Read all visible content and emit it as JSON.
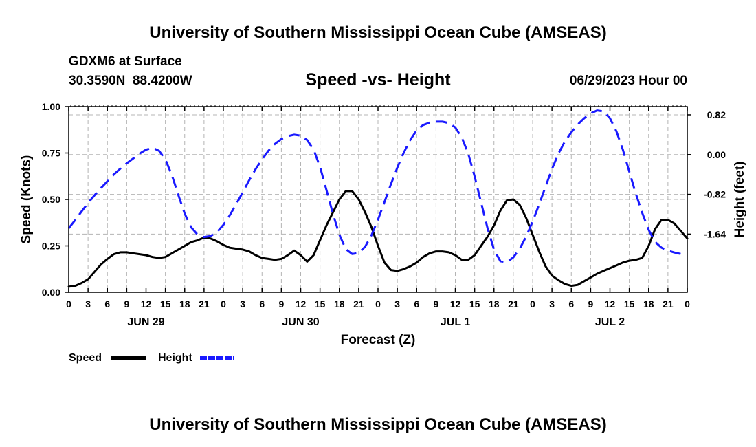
{
  "header": {
    "title": "University of Southern Mississippi Ocean Cube (AMSEAS)",
    "station": "GDXM6 at Surface",
    "coordinates": "30.3590N  88.4200W",
    "run_time": "06/29/2023 Hour 00"
  },
  "footer": {
    "title": "University of Southern Mississippi Ocean Cube (AMSEAS)"
  },
  "chart_data": {
    "type": "line",
    "title": "Speed -vs- Height",
    "xlabel": "Forecast (Z)",
    "ylabel_left": "Speed (Knots)",
    "ylabel_right": "Height (feet)",
    "x_range_hours": [
      0,
      96
    ],
    "x_tick_labels": [
      "0",
      "3",
      "6",
      "9",
      "12",
      "15",
      "18",
      "21",
      "0",
      "3",
      "6",
      "9",
      "12",
      "15",
      "18",
      "21",
      "0",
      "3",
      "6",
      "9",
      "12",
      "15",
      "18",
      "21",
      "0",
      "3",
      "6",
      "9",
      "12",
      "15",
      "18",
      "21",
      "0"
    ],
    "date_labels": [
      {
        "label": "JUN 29",
        "hour": 12
      },
      {
        "label": "JUN 30",
        "hour": 36
      },
      {
        "label": "JUL 1",
        "hour": 60
      },
      {
        "label": "JUL 2",
        "hour": 84
      }
    ],
    "left_axis": {
      "range": [
        0,
        1
      ],
      "ticks": [
        0,
        0.25,
        0.5,
        0.75,
        1.0
      ],
      "tick_labels": [
        "0.00",
        "0.25",
        "0.50",
        "0.75",
        "1.00"
      ]
    },
    "right_axis": {
      "range": [
        -2.84,
        0.99
      ],
      "ticks": [
        0.82,
        0.0,
        -0.82,
        -1.64
      ],
      "tick_labels": [
        "0.82",
        "0.00",
        "-0.82",
        "-1.64"
      ]
    },
    "grid": true,
    "legend": [
      {
        "name": "Speed",
        "color": "#000000",
        "style": "solid"
      },
      {
        "name": "Height",
        "color": "#1a1aff",
        "style": "dashed"
      }
    ],
    "series": [
      {
        "name": "Speed",
        "axis": "left",
        "color": "#000000",
        "style": "solid",
        "x": [
          0,
          1,
          2,
          3,
          4,
          5,
          6,
          7,
          8,
          9,
          10,
          11,
          12,
          13,
          14,
          15,
          16,
          17,
          18,
          19,
          20,
          21,
          22,
          23,
          24,
          25,
          26,
          27,
          28,
          29,
          30,
          31,
          32,
          33,
          34,
          35,
          36,
          37,
          38,
          39,
          40,
          41,
          42,
          43,
          44,
          45,
          46,
          47,
          48,
          49,
          50,
          51,
          52,
          53,
          54,
          55,
          56,
          57,
          58,
          59,
          60,
          61,
          62,
          63,
          64,
          65,
          66,
          67,
          68,
          69,
          70,
          71,
          72,
          73,
          74,
          75,
          76,
          77,
          78,
          79,
          80,
          81,
          82,
          83,
          84,
          85,
          86,
          87,
          88,
          89,
          90,
          91,
          92,
          93,
          94,
          95,
          96
        ],
        "values": [
          0.03,
          0.035,
          0.05,
          0.07,
          0.11,
          0.15,
          0.18,
          0.205,
          0.215,
          0.215,
          0.21,
          0.205,
          0.2,
          0.19,
          0.185,
          0.19,
          0.21,
          0.23,
          0.25,
          0.27,
          0.28,
          0.295,
          0.29,
          0.275,
          0.255,
          0.24,
          0.235,
          0.23,
          0.22,
          0.2,
          0.185,
          0.18,
          0.175,
          0.18,
          0.2,
          0.225,
          0.2,
          0.165,
          0.2,
          0.28,
          0.36,
          0.43,
          0.5,
          0.545,
          0.545,
          0.5,
          0.43,
          0.35,
          0.25,
          0.16,
          0.12,
          0.115,
          0.125,
          0.14,
          0.16,
          0.19,
          0.21,
          0.22,
          0.22,
          0.215,
          0.2,
          0.175,
          0.175,
          0.2,
          0.25,
          0.3,
          0.36,
          0.44,
          0.495,
          0.5,
          0.47,
          0.4,
          0.31,
          0.22,
          0.14,
          0.09,
          0.065,
          0.045,
          0.035,
          0.04,
          0.06,
          0.08,
          0.1,
          0.115,
          0.13,
          0.145,
          0.16,
          0.17,
          0.175,
          0.185,
          0.25,
          0.34,
          0.39,
          0.39,
          0.37,
          0.33,
          0.29
        ]
      },
      {
        "name": "Height",
        "axis": "right",
        "color": "#1a1aff",
        "style": "dashed",
        "x": [
          0,
          1,
          2,
          3,
          4,
          5,
          6,
          7,
          8,
          9,
          10,
          11,
          12,
          13,
          14,
          15,
          16,
          17,
          18,
          19,
          20,
          21,
          22,
          23,
          24,
          25,
          26,
          27,
          28,
          29,
          30,
          31,
          32,
          33,
          34,
          35,
          36,
          37,
          38,
          39,
          40,
          41,
          42,
          43,
          44,
          45,
          46,
          47,
          48,
          49,
          50,
          51,
          52,
          53,
          54,
          55,
          56,
          57,
          58,
          59,
          60,
          61,
          62,
          63,
          64,
          65,
          66,
          67,
          68,
          69,
          70,
          71,
          72,
          73,
          74,
          75,
          76,
          77,
          78,
          79,
          80,
          81,
          82,
          83,
          84,
          85,
          86,
          87,
          88,
          89,
          90,
          91,
          92,
          93,
          94,
          95,
          96
        ],
        "values": [
          -1.52,
          -1.35,
          -1.17,
          -1.0,
          -0.84,
          -0.69,
          -0.55,
          -0.41,
          -0.29,
          -0.18,
          -0.08,
          0.02,
          0.1,
          0.14,
          0.08,
          -0.1,
          -0.42,
          -0.83,
          -1.22,
          -1.5,
          -1.65,
          -1.7,
          -1.68,
          -1.6,
          -1.45,
          -1.25,
          -1.02,
          -0.78,
          -0.53,
          -0.3,
          -0.1,
          0.08,
          0.22,
          0.32,
          0.38,
          0.41,
          0.39,
          0.3,
          0.1,
          -0.25,
          -0.73,
          -1.22,
          -1.65,
          -1.95,
          -2.05,
          -2.03,
          -1.9,
          -1.66,
          -1.34,
          -0.98,
          -0.61,
          -0.27,
          0.04,
          0.3,
          0.5,
          0.61,
          0.66,
          0.68,
          0.68,
          0.65,
          0.56,
          0.35,
          0.02,
          -0.45,
          -0.99,
          -1.52,
          -1.96,
          -2.2,
          -2.22,
          -2.12,
          -1.94,
          -1.69,
          -1.38,
          -1.03,
          -0.66,
          -0.3,
          0.02,
          0.27,
          0.46,
          0.62,
          0.75,
          0.85,
          0.91,
          0.89,
          0.75,
          0.48,
          0.1,
          -0.35,
          -0.8,
          -1.2,
          -1.55,
          -1.8,
          -1.92,
          -1.98,
          -2.02,
          -2.05,
          -2.07
        ]
      }
    ]
  }
}
